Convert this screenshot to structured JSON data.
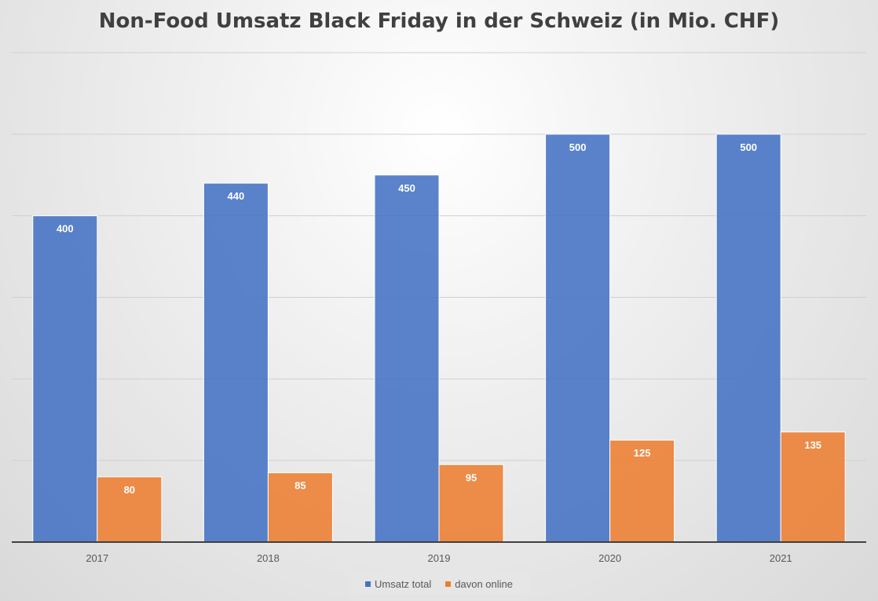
{
  "chart_data": {
    "type": "bar",
    "title": "Non-Food Umsatz Black Friday in der Schweiz (in Mio. CHF)",
    "xlabel": "",
    "ylabel": "",
    "categories": [
      "2017",
      "2018",
      "2019",
      "2020",
      "2021"
    ],
    "series": [
      {
        "name": "Umsatz total",
        "values": [
          400,
          440,
          450,
          500,
          500
        ],
        "color": "#4472C4"
      },
      {
        "name": "davon online",
        "values": [
          80,
          85,
          95,
          125,
          135
        ],
        "color": "#ED7D31"
      }
    ],
    "ylim": [
      0,
      600
    ],
    "ytick_step": 100,
    "grid": true,
    "legend_position": "bottom",
    "data_labels": true,
    "data_label_color": "#ffffff"
  }
}
